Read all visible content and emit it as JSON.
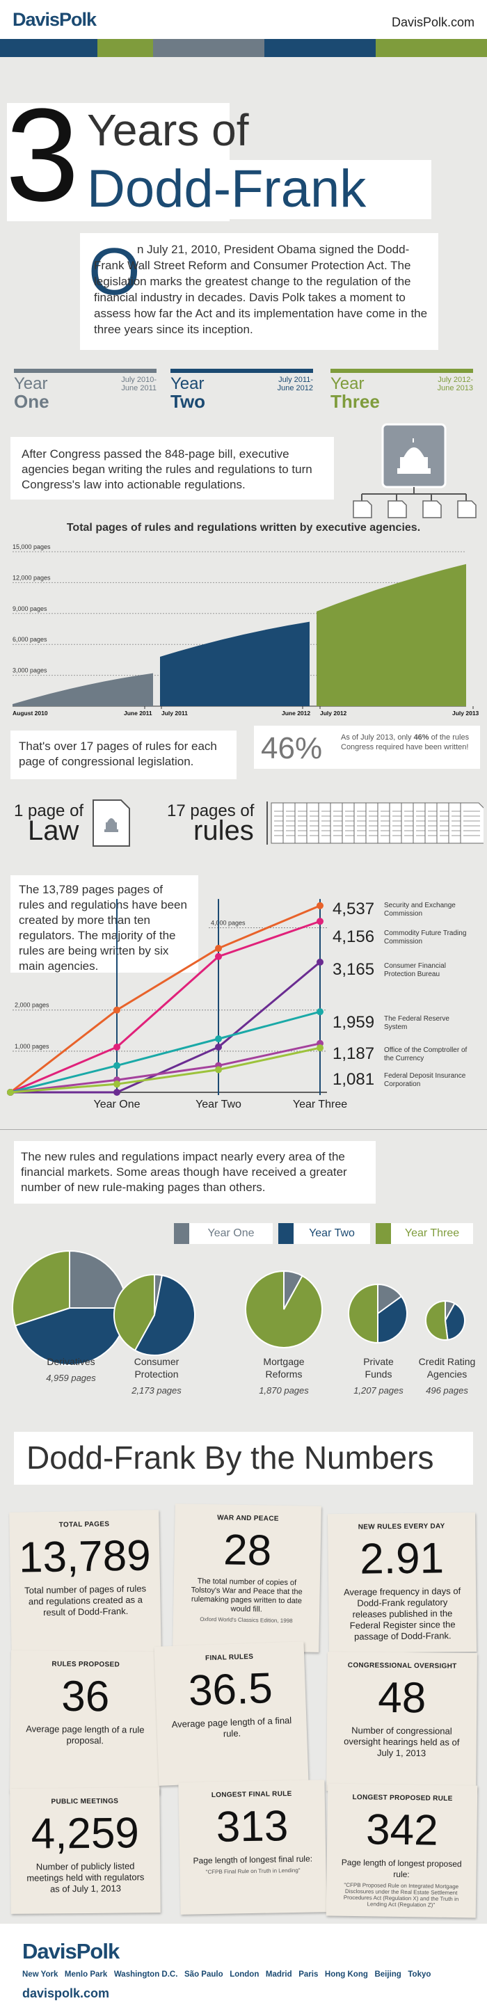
{
  "header": {
    "logo": "DavisPolk",
    "site": "DavisPolk.com",
    "bar_colors": [
      "#1b4a72",
      "#7f9c3c",
      "#6e7b86",
      "#1b4a72",
      "#7f9c3c"
    ]
  },
  "title": {
    "number": "3",
    "line1": "Years of",
    "line2": "Dodd-Frank"
  },
  "intro": {
    "dropcap": "O",
    "text": "n July 21, 2010, President Obama signed the Dodd-Frank Wall Street Reform and Consumer Protection Act. The legislation marks the greatest change to the regulation of the financial industry in decades. Davis Polk takes a moment to assess how far the Act and its implementation have come in the three years since its inception."
  },
  "years": [
    {
      "word": "Year",
      "num": "One",
      "range1": "July 2010-",
      "range2": "June 2011",
      "color": "#6e7b86"
    },
    {
      "word": "Year",
      "num": "Two",
      "range1": "July 2011-",
      "range2": "June 2012",
      "color": "#1b4a72"
    },
    {
      "word": "Year",
      "num": "Three",
      "range1": "July 2012-",
      "range2": "June 2013",
      "color": "#7f9c3c"
    }
  ],
  "callout1": "After Congress passed the 848-page bill, executive agencies began writing the rules and regulations to turn Congress's law into actionable regulations.",
  "area_chart": {
    "title": "Total pages of rules and regulations written by executive agencies.",
    "y_ticks": [
      "15,000 pages",
      "12,000 pages",
      "9,000 pages",
      "6,000 pages",
      "3,000 pages"
    ],
    "x_labels": [
      "August 2010",
      "June 2011",
      "July 2011",
      "June 2012",
      "July 2012",
      "July 2013"
    ]
  },
  "chart_data": [
    {
      "type": "area",
      "title": "Total pages of rules and regulations written by executive agencies.",
      "ylim": [
        0,
        15000
      ],
      "series": [
        {
          "name": "Year One",
          "x": [
            "August 2010",
            "June 2011"
          ],
          "values": [
            200,
            3200
          ]
        },
        {
          "name": "Year Two",
          "x": [
            "July 2011",
            "June 2012"
          ],
          "values": [
            4800,
            8200
          ]
        },
        {
          "name": "Year Three",
          "x": [
            "July 2012",
            "July 2013"
          ],
          "values": [
            9200,
            13800
          ]
        }
      ]
    },
    {
      "type": "line",
      "categories": [
        "",
        "Year One",
        "Year Two",
        "Year Three"
      ],
      "series": [
        {
          "name": "Security and Exchange Commission",
          "values": [
            0,
            2000,
            3500,
            4537
          ],
          "color": "#e8622a"
        },
        {
          "name": "Commodity Future Trading Commission",
          "values": [
            0,
            1100,
            3300,
            4156
          ],
          "color": "#e0217a"
        },
        {
          "name": "Consumer Financial Protection Bureau",
          "values": [
            0,
            0,
            1100,
            3165
          ],
          "color": "#6a2c91"
        },
        {
          "name": "The Federal Reserve System",
          "values": [
            0,
            650,
            1300,
            1959
          ],
          "color": "#1aa9a7"
        },
        {
          "name": "Office of the Comptroller of the Currency",
          "values": [
            0,
            300,
            650,
            1187
          ],
          "color": "#a4419c"
        },
        {
          "name": "Federal Deposit Insurance Corporation",
          "values": [
            0,
            200,
            550,
            1081
          ],
          "color": "#9cc23b"
        }
      ],
      "ylim": [
        0,
        5000
      ]
    },
    {
      "type": "pie",
      "categories": [
        "Derivatives",
        "Consumer Protection",
        "Mortgage Reforms",
        "Private Funds",
        "Credit Rating Agencies"
      ],
      "totals": [
        4959,
        2173,
        1870,
        1207,
        496
      ],
      "series": [
        {
          "name": "Year One",
          "values": [
            0.25,
            0.03,
            0.08,
            0.15,
            0.08
          ]
        },
        {
          "name": "Year Two",
          "values": [
            0.45,
            0.55,
            0.0,
            0.35,
            0.4
          ]
        },
        {
          "name": "Year Three",
          "values": [
            0.3,
            0.42,
            0.92,
            0.5,
            0.52
          ]
        }
      ]
    }
  ],
  "stat17": "That's over 17 pages of rules for each page of congressional legislation.",
  "stat46": {
    "pct": "46%",
    "pre": "As of July 2013, only ",
    "bold": "46%",
    "post": " of the rules Congress required have been written!"
  },
  "law": {
    "a1": "1 page of",
    "a2": "Law",
    "b1": "17 pages of",
    "b2": "rules"
  },
  "agencies": {
    "callout": "The 13,789 pages pages of rules and regulations have been created by more than ten regulators. The majority of the rules are being written by six main agencies.",
    "grid": [
      "4,000 pages",
      "2,000 pages",
      "1,000 pages"
    ],
    "xl": [
      "Year One",
      "Year Two",
      "Year Three"
    ],
    "items": [
      {
        "value": "4,537",
        "name": "Security and Exchange Commission"
      },
      {
        "value": "4,156",
        "name": "Commodity Future Trading Commission"
      },
      {
        "value": "3,165",
        "name": "Consumer Financial Protection Bureau"
      },
      {
        "value": "1,959",
        "name": "The Federal Reserve System"
      },
      {
        "value": "1,187",
        "name": "Office of the Comptroller of the Currency"
      },
      {
        "value": "1,081",
        "name": "Federal Deposit Insurance Corporation"
      }
    ]
  },
  "areas_callout": "The new rules and regulations impact nearly every area of the financial markets. Some areas though have received a greater number of new rule-making pages than others.",
  "legend": [
    "Year One",
    "Year Two",
    "Year Three"
  ],
  "pies": [
    {
      "name": "Derivatives",
      "pages": "4,959 pages"
    },
    {
      "name": "Consumer Protection",
      "pages": "2,173 pages"
    },
    {
      "name": "Mortgage Reforms",
      "pages": "1,870 pages"
    },
    {
      "name": "Private Funds",
      "pages": "1,207 pages"
    },
    {
      "name": "Credit Rating Agencies",
      "pages": "496 pages"
    }
  ],
  "numbers_title": "Dodd-Frank By the Numbers",
  "cards": [
    {
      "h": "TOTAL PAGES",
      "n": "13,789",
      "d": "Total number of pages of rules and regulations created as a result of Dodd-Frank.",
      "s": ""
    },
    {
      "h": "WAR AND PEACE",
      "n": "28",
      "d": "The total number of copies of Tolstoy's War and Peace that the rulemaking pages written to date would fill.",
      "s": "Oxford World's Classics Edition, 1998"
    },
    {
      "h": "NEW RULES EVERY DAY",
      "n": "2.91",
      "d": "Average frequency in days of Dodd-Frank regulatory releases published in the Federal Register since the passage of Dodd-Frank.",
      "s": ""
    },
    {
      "h": "RULES PROPOSED",
      "n": "36",
      "d": "Average page length of a rule proposal.",
      "s": ""
    },
    {
      "h": "FINAL RULES",
      "n": "36.5",
      "d": "Average page length of a final rule.",
      "s": ""
    },
    {
      "h": "CONGRESSIONAL OVERSIGHT",
      "n": "48",
      "d": "Number of congressional oversight hearings held as of July 1, 2013",
      "s": ""
    },
    {
      "h": "PUBLIC MEETINGS",
      "n": "4,259",
      "d": "Number of publicly listed meetings held with regulators as of July 1, 2013",
      "s": ""
    },
    {
      "h": "LONGEST FINAL RULE",
      "n": "313",
      "d": "Page length of longest final rule:",
      "s": "\"CFPB Final Rule on Truth in Lending\""
    },
    {
      "h": "LONGEST PROPOSED RULE",
      "n": "342",
      "d": "Page length of longest proposed rule:",
      "s": "\"CFPB Proposed Rule on Integrated Mortgage Disclosures under the Real Estate Settlement Procedures Act (Regulation X) and the Truth in Lending Act (Regulation Z)\""
    }
  ],
  "footer": {
    "logo": "DavisPolk",
    "cities": "New York   Menlo Park   Washington D.C.   São Paulo   London   Madrid   Paris   Hong Kong   Beijing   Tokyo",
    "site": "davispolk.com"
  }
}
